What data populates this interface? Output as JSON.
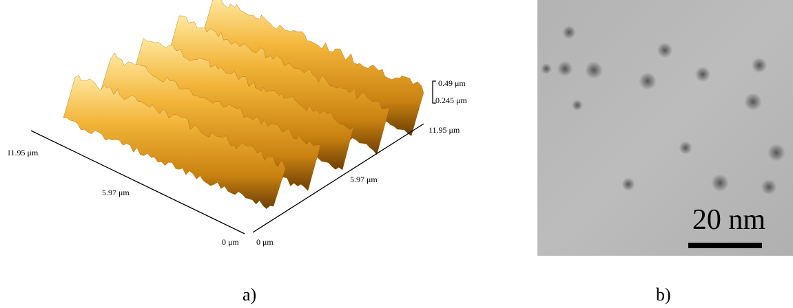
{
  "panel_a": {
    "z_labels": [
      "0.49 μm",
      "0.245 μm"
    ],
    "right_axis_labels": [
      "11.95 μm",
      "5.97 μm",
      "0 μm"
    ],
    "left_axis_labels": [
      "11.95 μm",
      "5.97 μm",
      "0 μm"
    ],
    "caption": "a)"
  },
  "panel_b": {
    "scale_bar": "20 nm",
    "caption": "b)"
  }
}
